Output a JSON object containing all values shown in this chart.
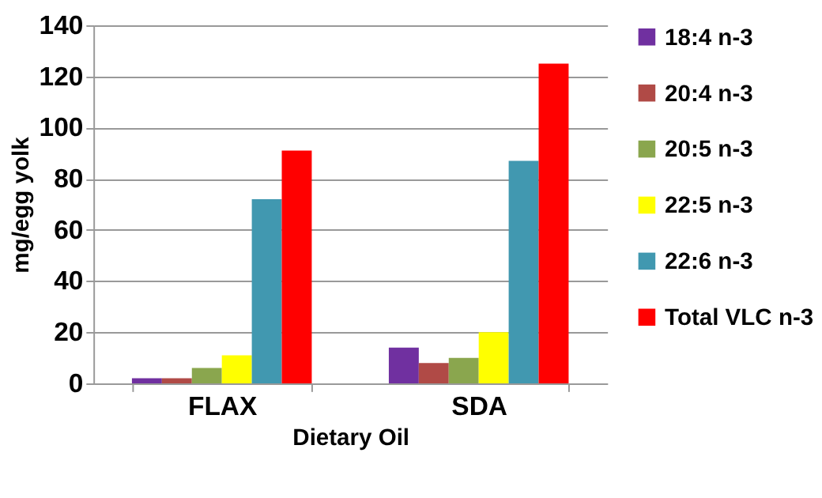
{
  "chart_data": {
    "type": "bar",
    "xlabel": "Dietary Oil",
    "ylabel": "mg/egg yolk",
    "categories": [
      "FLAX",
      "SDA"
    ],
    "series": [
      {
        "name": "18:4 n-3",
        "color": "#7030a0",
        "values": [
          2,
          14
        ]
      },
      {
        "name": "20:4 n-3",
        "color": "#b04a46",
        "values": [
          2,
          8
        ]
      },
      {
        "name": "20:5 n-3",
        "color": "#8aa64e",
        "values": [
          6,
          10
        ]
      },
      {
        "name": "22:5 n-3",
        "color": "#ffff00",
        "values": [
          11,
          20
        ]
      },
      {
        "name": "22:6 n-3",
        "color": "#4198b0",
        "values": [
          72,
          87
        ]
      },
      {
        "name": "Total VLC n-3",
        "color": "#ff0000",
        "values": [
          91,
          125
        ]
      }
    ],
    "ylim": [
      0,
      140
    ],
    "yticks": [
      0,
      20,
      40,
      60,
      80,
      100,
      120,
      140
    ],
    "grid": "y",
    "legend": "right"
  }
}
